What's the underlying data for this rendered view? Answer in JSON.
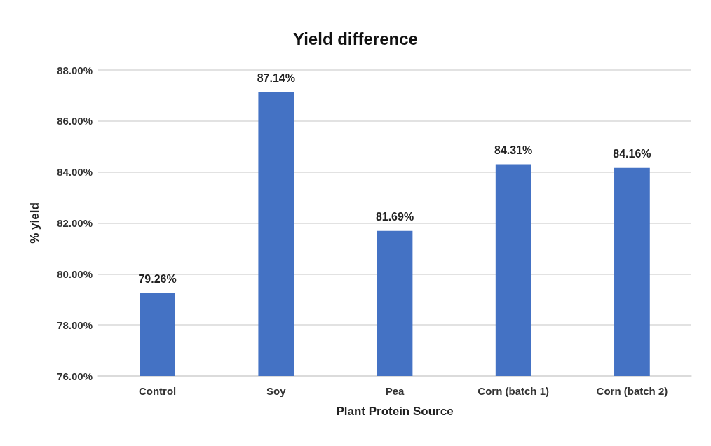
{
  "chart_data": {
    "type": "bar",
    "title": "Yield difference",
    "xlabel": "Plant Protein Source",
    "ylabel": "% yield",
    "categories": [
      "Control",
      "Soy",
      "Pea",
      "Corn (batch 1)",
      "Corn (batch 2)"
    ],
    "values": [
      79.26,
      87.14,
      81.69,
      84.31,
      84.16
    ],
    "value_labels": [
      "79.26%",
      "87.14%",
      "81.69%",
      "84.31%",
      "84.16%"
    ],
    "color": "#4472c4",
    "ylim": [
      76,
      88
    ],
    "yticks": [
      {
        "value": 76,
        "label": "76.00%"
      },
      {
        "value": 78,
        "label": "78.00%"
      },
      {
        "value": 80,
        "label": "80.00%"
      },
      {
        "value": 82,
        "label": "82.00%"
      },
      {
        "value": 84,
        "label": "84.00%"
      },
      {
        "value": 86,
        "label": "86.00%"
      },
      {
        "value": 88,
        "label": "88.00%"
      }
    ],
    "grid": "y"
  }
}
